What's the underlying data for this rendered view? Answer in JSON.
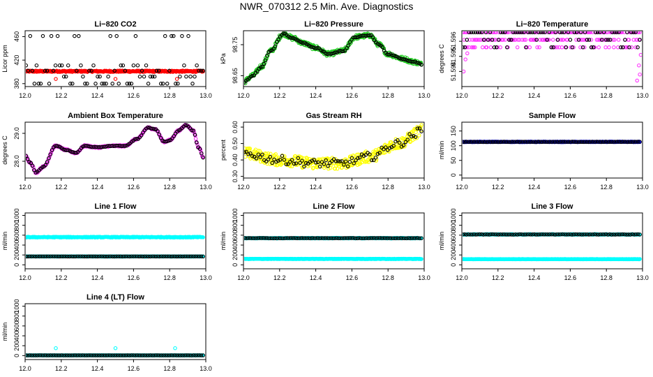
{
  "page": {
    "title": "NWR_070312  2.5 Min. Ave. Diagnostics"
  },
  "chart_data": [
    {
      "id": "co2",
      "type": "scatter",
      "title": "Li−820 CO2",
      "ylabel": "Licor ppm",
      "xlim": [
        12.0,
        13.0
      ],
      "ylim": [
        375,
        470
      ],
      "yticks": [
        380,
        420,
        460
      ],
      "xticks": [
        "12.0",
        "12.2",
        "12.4",
        "12.6",
        "12.8",
        "13.0"
      ],
      "series": [
        {
          "name": "dense",
          "color": "#ff0000",
          "kind": "flat",
          "y": 401,
          "jitter": 1.2,
          "n": 330
        },
        {
          "name": "outliers",
          "color": "#ff0000",
          "kind": "points",
          "pts": [
            [
              12.17,
              388
            ],
            [
              12.5,
              388
            ],
            [
              12.84,
              388
            ]
          ]
        },
        {
          "name": "ave",
          "color": "#000000",
          "kind": "levels",
          "levels": [
            380,
            392,
            402,
            411,
            461
          ],
          "n": 85
        }
      ]
    },
    {
      "id": "press",
      "type": "scatter",
      "title": "Li−820 Pressure",
      "ylabel": "kPa",
      "xlim": [
        12.0,
        13.0
      ],
      "ylim": [
        98.615,
        98.795
      ],
      "yticks": [
        98.65,
        98.75
      ],
      "xticks": [
        "12.0",
        "12.2",
        "12.4",
        "12.6",
        "12.8",
        "13.0"
      ],
      "series": [
        {
          "name": "raw",
          "color": "#22cc22",
          "kind": "curve",
          "jitter": 0.007,
          "n": 360,
          "knots": [
            [
              12.0,
              98.63
            ],
            [
              12.05,
              98.65
            ],
            [
              12.1,
              98.68
            ],
            [
              12.15,
              98.73
            ],
            [
              12.22,
              98.785
            ],
            [
              12.28,
              98.77
            ],
            [
              12.33,
              98.755
            ],
            [
              12.4,
              98.74
            ],
            [
              12.47,
              98.72
            ],
            [
              12.55,
              98.73
            ],
            [
              12.62,
              98.775
            ],
            [
              12.7,
              98.78
            ],
            [
              12.75,
              98.75
            ],
            [
              12.8,
              98.72
            ],
            [
              12.88,
              98.705
            ],
            [
              12.94,
              98.695
            ],
            [
              13.0,
              98.685
            ]
          ]
        },
        {
          "name": "ave",
          "color": "#000000",
          "kind": "curve",
          "jitter": 0.002,
          "n": 110,
          "knots": [
            [
              12.0,
              98.63
            ],
            [
              12.05,
              98.65
            ],
            [
              12.1,
              98.68
            ],
            [
              12.15,
              98.73
            ],
            [
              12.22,
              98.785
            ],
            [
              12.28,
              98.77
            ],
            [
              12.33,
              98.755
            ],
            [
              12.4,
              98.74
            ],
            [
              12.47,
              98.72
            ],
            [
              12.55,
              98.73
            ],
            [
              12.62,
              98.775
            ],
            [
              12.7,
              98.78
            ],
            [
              12.75,
              98.75
            ],
            [
              12.8,
              98.72
            ],
            [
              12.88,
              98.705
            ],
            [
              12.94,
              98.695
            ],
            [
              13.0,
              98.685
            ]
          ]
        }
      ]
    },
    {
      "id": "temp",
      "type": "scatter",
      "title": "Li−820 Temperature",
      "ylabel": "degrees C",
      "xlim": [
        12.0,
        13.0
      ],
      "ylim": [
        51.593,
        51.5967
      ],
      "yticks": [
        51.594,
        51.595,
        51.596
      ],
      "ytick_labels": [
        "51.594",
        "51.595",
        "51.596"
      ],
      "xticks": [
        "12.0",
        "12.2",
        "12.4",
        "12.6",
        "12.8",
        "13.0"
      ],
      "series": [
        {
          "name": "raw",
          "color": "#ff33ff",
          "kind": "levels",
          "levels": [
            51.5966,
            51.5966,
            51.5966,
            51.5961,
            51.5961,
            51.5956
          ],
          "n": 260
        },
        {
          "name": "raw-edges",
          "color": "#ff33ff",
          "kind": "points",
          "pts": [
            [
              12.01,
              51.594
            ],
            [
              12.02,
              51.5948
            ],
            [
              12.03,
              51.5952
            ],
            [
              12.97,
              51.5934
            ],
            [
              12.98,
              51.5944
            ],
            [
              12.99,
              51.5951
            ],
            [
              12.985,
              51.5938
            ]
          ]
        },
        {
          "name": "ave",
          "color": "#000000",
          "kind": "levels",
          "levels": [
            51.5966,
            51.5966,
            51.5966,
            51.5961,
            51.5956
          ],
          "n": 85
        }
      ]
    },
    {
      "id": "box",
      "type": "scatter",
      "title": "Ambient Box Temperature",
      "ylabel": "degrees C",
      "xlim": [
        12.0,
        13.0
      ],
      "ylim": [
        27.4,
        29.4
      ],
      "yticks": [
        28.0,
        29.0
      ],
      "ytick_labels": [
        "28.0",
        "29.0"
      ],
      "xticks": [
        "12.0",
        "12.2",
        "12.4",
        "12.6",
        "12.8",
        "13.0"
      ],
      "series": [
        {
          "name": "raw",
          "color": "#ee33ee",
          "kind": "curve",
          "jitter": 0.03,
          "n": 340,
          "knots": [
            [
              12.0,
              28.2
            ],
            [
              12.03,
              27.95
            ],
            [
              12.06,
              27.6
            ],
            [
              12.1,
              27.8
            ],
            [
              12.17,
              28.55
            ],
            [
              12.23,
              28.4
            ],
            [
              12.28,
              28.3
            ],
            [
              12.33,
              28.55
            ],
            [
              12.4,
              28.5
            ],
            [
              12.48,
              28.55
            ],
            [
              12.55,
              28.55
            ],
            [
              12.62,
              28.8
            ],
            [
              12.68,
              29.2
            ],
            [
              12.72,
              29.15
            ],
            [
              12.77,
              28.7
            ],
            [
              12.8,
              28.75
            ],
            [
              12.85,
              29.1
            ],
            [
              12.89,
              29.3
            ],
            [
              12.93,
              29.1
            ],
            [
              12.96,
              28.5
            ],
            [
              12.99,
              28.1
            ]
          ]
        },
        {
          "name": "ave",
          "color": "#000000",
          "kind": "curve",
          "jitter": 0.01,
          "n": 110,
          "knots": [
            [
              12.0,
              28.2
            ],
            [
              12.03,
              27.95
            ],
            [
              12.06,
              27.6
            ],
            [
              12.1,
              27.8
            ],
            [
              12.17,
              28.55
            ],
            [
              12.23,
              28.4
            ],
            [
              12.28,
              28.3
            ],
            [
              12.33,
              28.55
            ],
            [
              12.4,
              28.5
            ],
            [
              12.48,
              28.55
            ],
            [
              12.55,
              28.55
            ],
            [
              12.62,
              28.8
            ],
            [
              12.68,
              29.2
            ],
            [
              12.72,
              29.15
            ],
            [
              12.77,
              28.7
            ],
            [
              12.8,
              28.75
            ],
            [
              12.85,
              29.1
            ],
            [
              12.89,
              29.3
            ],
            [
              12.93,
              29.1
            ],
            [
              12.96,
              28.5
            ],
            [
              12.99,
              28.1
            ]
          ]
        }
      ]
    },
    {
      "id": "rh",
      "type": "scatter",
      "title": "Gas Stream RH",
      "ylabel": "percent",
      "xlim": [
        12.0,
        13.0
      ],
      "ylim": [
        0.29,
        0.63
      ],
      "yticks": [
        0.3,
        0.4,
        0.5,
        0.6
      ],
      "ytick_labels": [
        "0.30",
        "0.40",
        "0.50",
        "0.60"
      ],
      "xticks": [
        "12.0",
        "12.2",
        "12.4",
        "12.6",
        "12.8",
        "13.0"
      ],
      "series": [
        {
          "name": "raw",
          "color": "#ffff00",
          "kind": "curve",
          "jitter": 0.035,
          "n": 380,
          "knots": [
            [
              12.0,
              0.44
            ],
            [
              12.2,
              0.4
            ],
            [
              12.4,
              0.38
            ],
            [
              12.55,
              0.38
            ],
            [
              12.7,
              0.42
            ],
            [
              12.85,
              0.5
            ],
            [
              13.0,
              0.58
            ]
          ]
        },
        {
          "name": "ave",
          "color": "#000000",
          "kind": "curve",
          "jitter": 0.025,
          "n": 90,
          "knots": [
            [
              12.0,
              0.44
            ],
            [
              12.2,
              0.4
            ],
            [
              12.4,
              0.38
            ],
            [
              12.55,
              0.38
            ],
            [
              12.7,
              0.42
            ],
            [
              12.85,
              0.5
            ],
            [
              13.0,
              0.58
            ]
          ]
        }
      ]
    },
    {
      "id": "sflow",
      "type": "scatter",
      "title": "Sample Flow",
      "ylabel": "ml/min",
      "xlim": [
        12.0,
        13.0
      ],
      "ylim": [
        -10,
        180
      ],
      "yticks": [
        0,
        50,
        100,
        150
      ],
      "xticks": [
        "12.0",
        "12.2",
        "12.4",
        "12.6",
        "12.8",
        "13.0"
      ],
      "series": [
        {
          "name": "raw",
          "color": "#0000ff",
          "kind": "flat",
          "y": 113,
          "jitter": 0.8,
          "n": 330
        },
        {
          "name": "ave",
          "color": "#000000",
          "kind": "flat",
          "y": 113,
          "jitter": 0.5,
          "n": 95
        }
      ]
    },
    {
      "id": "line1",
      "type": "scatter",
      "title": "Line 1 Flow",
      "ylabel": "ml/min",
      "xlim": [
        12.0,
        13.0
      ],
      "ylim": [
        -80,
        1050
      ],
      "yticks": [
        0,
        200,
        400,
        600,
        800,
        1000
      ],
      "xticks": [
        "12.0",
        "12.2",
        "12.4",
        "12.6",
        "12.8",
        "13.0"
      ],
      "series": [
        {
          "name": "raw",
          "color": "#00ffff",
          "kind": "flat",
          "y": 560,
          "jitter": 8,
          "n": 330
        },
        {
          "name": "raw-low",
          "color": "#00ffff",
          "kind": "flat",
          "y": 170,
          "jitter": 3,
          "n": 300
        },
        {
          "name": "ave",
          "color": "#000000",
          "kind": "flat",
          "y": 170,
          "jitter": 2,
          "n": 95
        }
      ]
    },
    {
      "id": "line2",
      "type": "scatter",
      "title": "Line 2 Flow",
      "ylabel": "ml/min",
      "xlim": [
        12.0,
        13.0
      ],
      "ylim": [
        -80,
        1050
      ],
      "yticks": [
        0,
        200,
        400,
        600,
        800,
        1000
      ],
      "xticks": [
        "12.0",
        "12.2",
        "12.4",
        "12.6",
        "12.8",
        "13.0"
      ],
      "series": [
        {
          "name": "raw",
          "color": "#00ffff",
          "kind": "flat",
          "y": 540,
          "jitter": 6,
          "n": 300
        },
        {
          "name": "raw-low",
          "color": "#00ffff",
          "kind": "flat",
          "y": 120,
          "jitter": 4,
          "n": 330
        },
        {
          "name": "ave",
          "color": "#000000",
          "kind": "flat",
          "y": 540,
          "jitter": 3,
          "n": 95
        }
      ]
    },
    {
      "id": "line3",
      "type": "scatter",
      "title": "Line 3 Flow",
      "ylabel": "ml/min",
      "xlim": [
        12.0,
        13.0
      ],
      "ylim": [
        -80,
        1050
      ],
      "yticks": [
        0,
        200,
        400,
        600,
        800,
        1000
      ],
      "xticks": [
        "12.0",
        "12.2",
        "12.4",
        "12.6",
        "12.8",
        "13.0"
      ],
      "series": [
        {
          "name": "raw",
          "color": "#00ffff",
          "kind": "flat",
          "y": 615,
          "jitter": 6,
          "n": 300
        },
        {
          "name": "raw-low",
          "color": "#00ffff",
          "kind": "flat",
          "y": 115,
          "jitter": 3,
          "n": 330
        },
        {
          "name": "ave",
          "color": "#000000",
          "kind": "flat",
          "y": 615,
          "jitter": 3,
          "n": 95
        }
      ]
    },
    {
      "id": "line4",
      "type": "scatter",
      "title": "Line 4 (LT) Flow",
      "ylabel": "ml/min",
      "xlim": [
        12.0,
        13.0
      ],
      "ylim": [
        -80,
        1050
      ],
      "yticks": [
        0,
        200,
        400,
        600,
        800,
        1000
      ],
      "xticks": [
        "12.0",
        "12.2",
        "12.4",
        "12.6",
        "12.8",
        "13.0"
      ],
      "series": [
        {
          "name": "raw",
          "color": "#00ffff",
          "kind": "flat",
          "y": 5,
          "jitter": 1,
          "n": 300
        },
        {
          "name": "spikes",
          "color": "#00ffff",
          "kind": "points",
          "pts": [
            [
              12.17,
              150
            ],
            [
              12.5,
              150
            ],
            [
              12.83,
              150
            ]
          ]
        },
        {
          "name": "ave",
          "color": "#000000",
          "kind": "flat",
          "y": 5,
          "jitter": 1,
          "n": 95
        }
      ]
    }
  ]
}
